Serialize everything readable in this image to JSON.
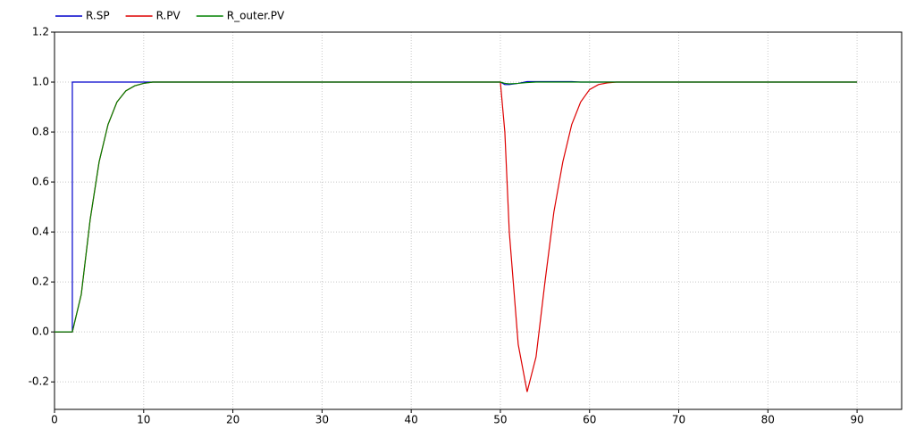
{
  "chart_data": {
    "type": "line",
    "x": [
      0,
      2,
      2,
      3,
      4,
      5,
      6,
      7,
      8,
      9,
      10,
      11,
      12,
      50,
      50.5,
      51,
      52,
      53,
      54,
      55,
      56,
      57,
      58,
      59,
      60,
      61,
      62,
      63,
      64,
      90
    ],
    "series": [
      {
        "name": "R.SP",
        "color": "#0000cc",
        "values": [
          0,
          0,
          1,
          1,
          1,
          1,
          1,
          1,
          1,
          1,
          1,
          1,
          1,
          1,
          0.99,
          0.99,
          0.995,
          1.002,
          1.002,
          1.002,
          1.002,
          1.002,
          1.002,
          1,
          1,
          1,
          1,
          1,
          1,
          1
        ]
      },
      {
        "name": "R.PV",
        "color": "#dd0000",
        "values": [
          0,
          0,
          0,
          0.15,
          0.45,
          0.68,
          0.83,
          0.92,
          0.965,
          0.985,
          0.995,
          1,
          1,
          1,
          0.8,
          0.4,
          -0.05,
          -0.24,
          -0.1,
          0.2,
          0.48,
          0.68,
          0.83,
          0.92,
          0.97,
          0.99,
          0.997,
          1,
          1,
          1
        ]
      },
      {
        "name": "R_outer.PV",
        "color": "#008000",
        "values": [
          0,
          0,
          0,
          0.15,
          0.45,
          0.68,
          0.83,
          0.92,
          0.965,
          0.985,
          0.995,
          1,
          1,
          1,
          0.995,
          0.993,
          0.995,
          0.998,
          1,
          1,
          1,
          1,
          1,
          1,
          1,
          1,
          1,
          1,
          1,
          1
        ]
      }
    ],
    "xlim": [
      0,
      95
    ],
    "ylim": [
      -0.31,
      1.2
    ],
    "xticks": [
      0,
      10,
      20,
      30,
      40,
      50,
      60,
      70,
      80,
      90
    ],
    "yticks": [
      {
        "value": -0.2,
        "label": "-0.2"
      },
      {
        "value": 0,
        "label": "0.0"
      },
      0.2,
      0.4,
      0.6,
      0.8,
      {
        "value": 1,
        "label": "1.0"
      },
      1.2
    ],
    "grid": true
  }
}
